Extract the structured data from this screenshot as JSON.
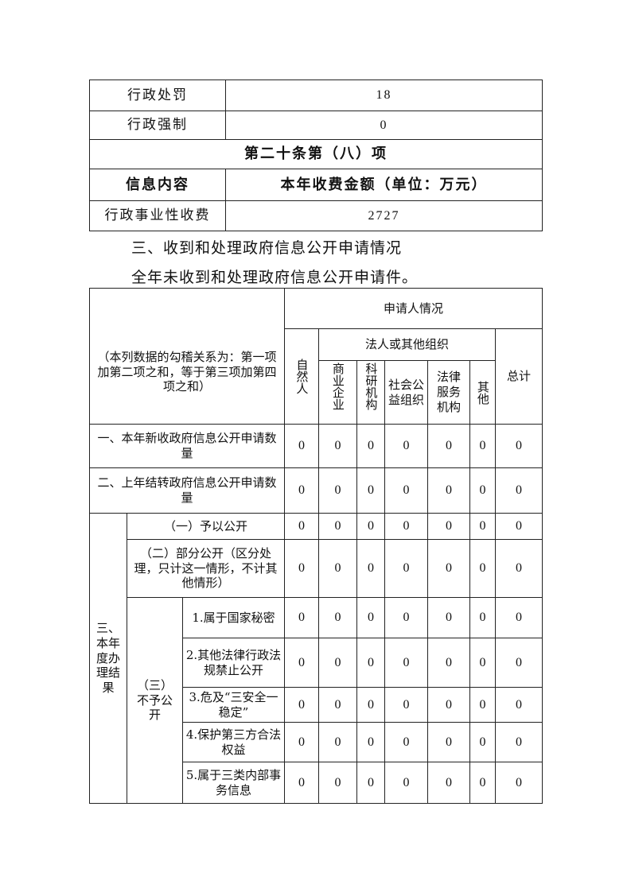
{
  "top_table": {
    "rows": [
      {
        "label": "行政处罚",
        "value": "18"
      },
      {
        "label": "行政强制",
        "value": "0"
      }
    ],
    "section_heading": "第二十条第（八）项",
    "header": {
      "col1": "信息内容",
      "col2": "本年收费金额（单位：万元）"
    },
    "fee_row": {
      "label": "行政事业性收费",
      "value": "2727"
    }
  },
  "section3": {
    "title": "三、收到和处理政府信息公开申请情况",
    "note": "全年未收到和处理政府信息公开申请件。"
  },
  "apply_table": {
    "corner_note": "（本列数据的勾稽关系为：第一项加第二项之和，等于第三项加第四项之和）",
    "applicant_header": "申请人情况",
    "natural_person": "自然人",
    "legal_org_header": "法人或其他组织",
    "org_columns": [
      "商业企业",
      "科研机构",
      "社会公益组织",
      "法律服务机构",
      "其他"
    ],
    "total": "总计",
    "rows": [
      {
        "label": "一、本年新收政府信息公开申请数量",
        "values": [
          "0",
          "0",
          "0",
          "0",
          "0",
          "0",
          "0"
        ]
      },
      {
        "label": "二、上年结转政府信息公开申请数量",
        "values": [
          "0",
          "0",
          "0",
          "0",
          "0",
          "0",
          "0"
        ]
      }
    ],
    "result_group": "三、本年度办理结果",
    "result_rows": [
      {
        "label": "（一）予以公开",
        "values": [
          "0",
          "0",
          "0",
          "0",
          "0",
          "0",
          "0"
        ]
      },
      {
        "label": "（二）部分公开（区分处理，只计这一情形，不计其他情形）",
        "values": [
          "0",
          "0",
          "0",
          "0",
          "0",
          "0",
          "0"
        ]
      }
    ],
    "not_open_group": "（三）不予公开",
    "not_open_rows": [
      {
        "label": "1.属于国家秘密",
        "values": [
          "0",
          "0",
          "0",
          "0",
          "0",
          "0",
          "0"
        ]
      },
      {
        "label": "2.其他法律行政法规禁止公开",
        "values": [
          "0",
          "0",
          "0",
          "0",
          "0",
          "0",
          "0"
        ]
      },
      {
        "label": "3.危及“三安全一稳定”",
        "values": [
          "0",
          "0",
          "0",
          "0",
          "0",
          "0",
          "0"
        ]
      },
      {
        "label": "4.保护第三方合法权益",
        "values": [
          "0",
          "0",
          "0",
          "0",
          "0",
          "0",
          "0"
        ]
      },
      {
        "label": "5.属于三类内部事务信息",
        "values": [
          "0",
          "0",
          "0",
          "0",
          "0",
          "0",
          "0"
        ]
      }
    ]
  }
}
